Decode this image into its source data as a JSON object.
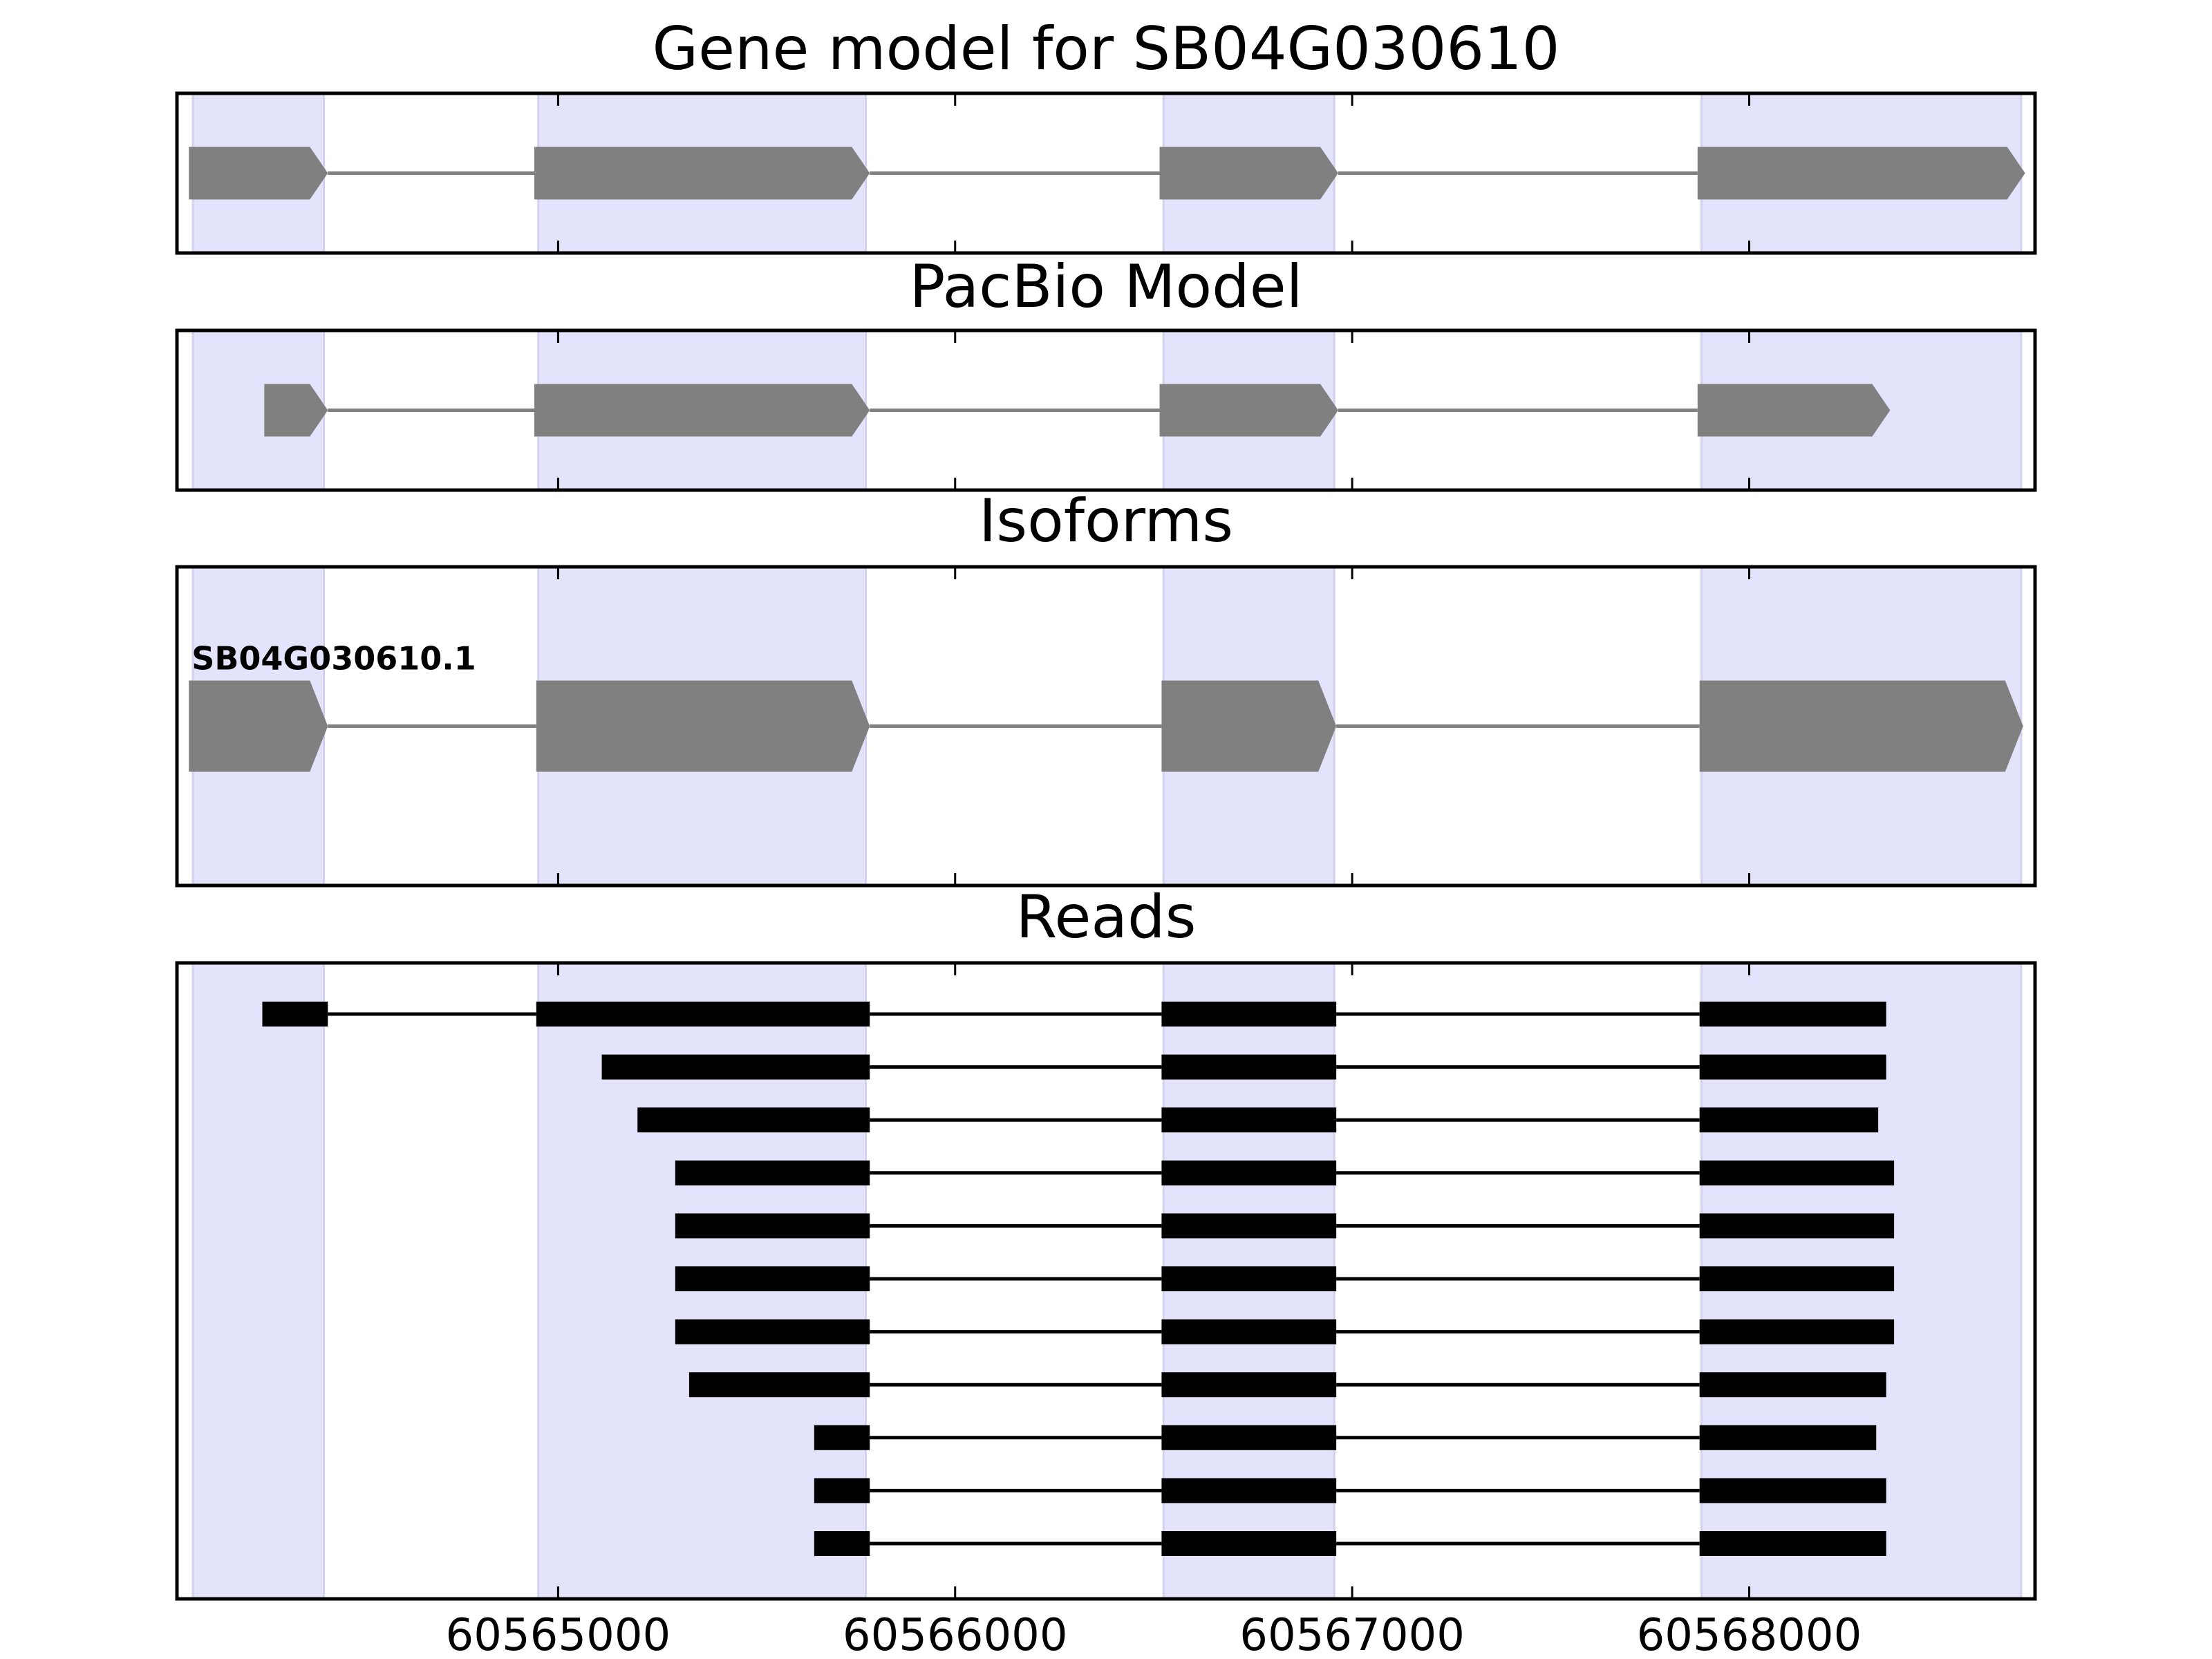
{
  "chart_data": {
    "type": "gene-track",
    "xlim": [
      60564040,
      60568720
    ],
    "xticks": [
      60565000,
      60566000,
      60567000,
      60568000
    ],
    "xtick_labels": [
      "60565000",
      "60566000",
      "60567000",
      "60568000"
    ],
    "shaded_regions": [
      [
        60564080,
        60564410
      ],
      [
        60564950,
        60565775
      ],
      [
        60566525,
        60566955
      ],
      [
        60567880,
        60568685
      ]
    ],
    "colors": {
      "shade": "#e3e3fb",
      "shade_edge": "#d2d2f0",
      "model": "#808080",
      "read": "#000000",
      "frame": "#000000"
    },
    "panels": [
      {
        "id": "gene-model",
        "title": "Gene model for SB04G030610",
        "kind": "model",
        "models": [
          {
            "label": "",
            "exons": [
              [
                60564070,
                60564420
              ],
              [
                60564940,
                60565785
              ],
              [
                60566515,
                60566965
              ],
              [
                60567870,
                60568695
              ]
            ]
          }
        ]
      },
      {
        "id": "pacbio-model",
        "title": "PacBio Model",
        "kind": "model",
        "models": [
          {
            "label": "",
            "exons": [
              [
                60564260,
                60564420
              ],
              [
                60564940,
                60565785
              ],
              [
                60566515,
                60566965
              ],
              [
                60567870,
                60568355
              ]
            ]
          }
        ]
      },
      {
        "id": "isoforms",
        "title": "Isoforms",
        "kind": "model",
        "models": [
          {
            "label": "SB04G030610.1",
            "exons": [
              [
                60564070,
                60564420
              ],
              [
                60564945,
                60565785
              ],
              [
                60566520,
                60566960
              ],
              [
                60567875,
                60568690
              ]
            ]
          }
        ]
      },
      {
        "id": "reads",
        "title": "Reads",
        "kind": "reads",
        "reads": [
          [
            [
              60564255,
              60564420
            ],
            [
              60564945,
              60565785
            ],
            [
              60566520,
              60566960
            ],
            [
              60567875,
              60568345
            ]
          ],
          [
            [
              60565110,
              60565785
            ],
            [
              60566520,
              60566960
            ],
            [
              60567875,
              60568345
            ]
          ],
          [
            [
              60565200,
              60565785
            ],
            [
              60566520,
              60566960
            ],
            [
              60567875,
              60568325
            ]
          ],
          [
            [
              60565295,
              60565785
            ],
            [
              60566520,
              60566960
            ],
            [
              60567875,
              60568365
            ]
          ],
          [
            [
              60565295,
              60565785
            ],
            [
              60566520,
              60566960
            ],
            [
              60567875,
              60568365
            ]
          ],
          [
            [
              60565295,
              60565785
            ],
            [
              60566520,
              60566960
            ],
            [
              60567875,
              60568365
            ]
          ],
          [
            [
              60565295,
              60565785
            ],
            [
              60566520,
              60566960
            ],
            [
              60567875,
              60568365
            ]
          ],
          [
            [
              60565330,
              60565785
            ],
            [
              60566520,
              60566960
            ],
            [
              60567875,
              60568345
            ]
          ],
          [
            [
              60565645,
              60565785
            ],
            [
              60566520,
              60566960
            ],
            [
              60567875,
              60568320
            ]
          ],
          [
            [
              60565645,
              60565785
            ],
            [
              60566520,
              60566960
            ],
            [
              60567875,
              60568345
            ]
          ],
          [
            [
              60565645,
              60565785
            ],
            [
              60566520,
              60566960
            ],
            [
              60567875,
              60568345
            ]
          ]
        ]
      }
    ]
  }
}
